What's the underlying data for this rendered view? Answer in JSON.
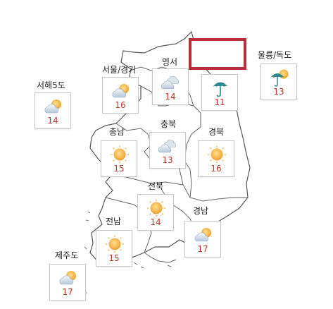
{
  "map": {
    "regions": [
      {
        "id": "seohae5do",
        "label": "서해5도",
        "temp": "14",
        "icon": "partly-cloudy-icon"
      },
      {
        "id": "seoul",
        "label": "서울/경기",
        "temp": "16",
        "icon": "partly-cloudy-icon"
      },
      {
        "id": "yeongseo",
        "label": "영서",
        "temp": "14",
        "icon": "cloudy-icon"
      },
      {
        "id": "yeongdong",
        "label": "",
        "temp": "11",
        "icon": "umbrella-icon"
      },
      {
        "id": "ulleung",
        "label": "울릉/독도",
        "temp": "13",
        "icon": "umbrella-sun-icon"
      },
      {
        "id": "chungnam",
        "label": "충남",
        "temp": "15",
        "icon": "sunny-icon"
      },
      {
        "id": "chungbuk",
        "label": "충북",
        "temp": "13",
        "icon": "cloudy-icon"
      },
      {
        "id": "gyeongbuk",
        "label": "경북",
        "temp": "16",
        "icon": "sunny-icon"
      },
      {
        "id": "jeonbuk",
        "label": "전북",
        "temp": "14",
        "icon": "sunny-icon"
      },
      {
        "id": "gyeongnam",
        "label": "경남",
        "temp": "17",
        "icon": "partly-cloudy-icon"
      },
      {
        "id": "jeonnam",
        "label": "전남",
        "temp": "15",
        "icon": "sunny-icon"
      },
      {
        "id": "jeju",
        "label": "제주도",
        "temp": "17",
        "icon": "partly-cloudy-icon"
      }
    ],
    "colors": {
      "temp": "#c0392b",
      "highlight": "#b5303a",
      "outline": "#555555",
      "sun": "#f0a030",
      "cloud": "#b8c8d8",
      "umbrella": "#2e8b8b"
    }
  }
}
